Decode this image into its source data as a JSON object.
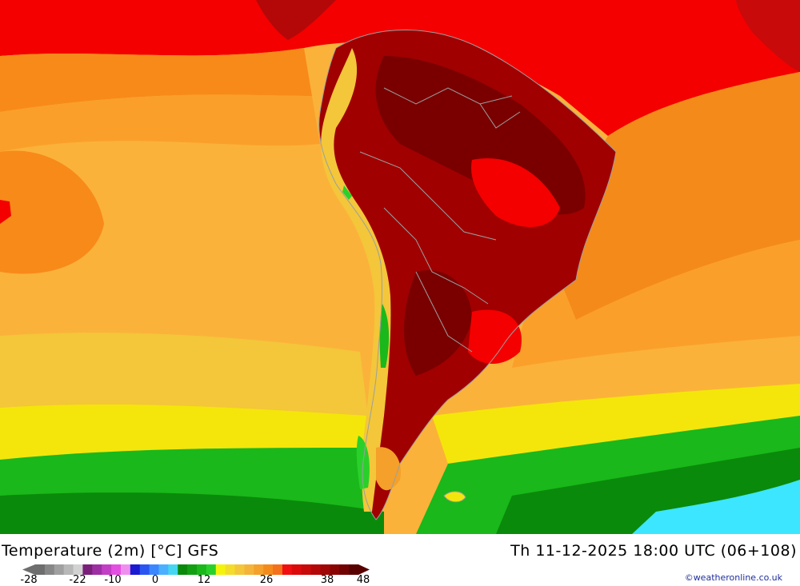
{
  "title": {
    "left": "Temperature (2m) [°C] GFS",
    "right": "Th 11-12-2025 18:00 UTC (06+108)"
  },
  "legend": {
    "ticks": [
      "-28",
      "-22",
      "-10",
      "0",
      "12",
      "26",
      "38",
      "48"
    ],
    "colors": [
      "#6e6e6e",
      "#878787",
      "#a0a0a0",
      "#b8b8b8",
      "#d2d2d2",
      "#7a1f7a",
      "#9d2fa3",
      "#c23ec4",
      "#e34fe0",
      "#f08ef0",
      "#1a1ad0",
      "#2a55f0",
      "#3a86ff",
      "#4ab0ff",
      "#46d6f0",
      "#0a8a0a",
      "#12a012",
      "#1ab81a",
      "#2ad02a",
      "#f4f40a",
      "#f4dc2a",
      "#f4c63a",
      "#f4b43a",
      "#f4a02a",
      "#f48a1a",
      "#f4701a",
      "#f01010",
      "#dc0a0a",
      "#c80a0a",
      "#b40808",
      "#a00606",
      "#8a0404",
      "#700202",
      "#580000"
    ]
  },
  "credit": "©weatheronline.co.uk",
  "map": {
    "colors": {
      "hot_red": "#f40000",
      "deep_red": "#a00000",
      "dark_red": "#7a0000",
      "orange": "#f88a1a",
      "light_orange": "#faa02a",
      "amber": "#fbb23a",
      "yellow": "#f4e60a",
      "green": "#1ab81a",
      "dark_green": "#0a8a0a",
      "cyan": "#3ce6ff"
    }
  }
}
